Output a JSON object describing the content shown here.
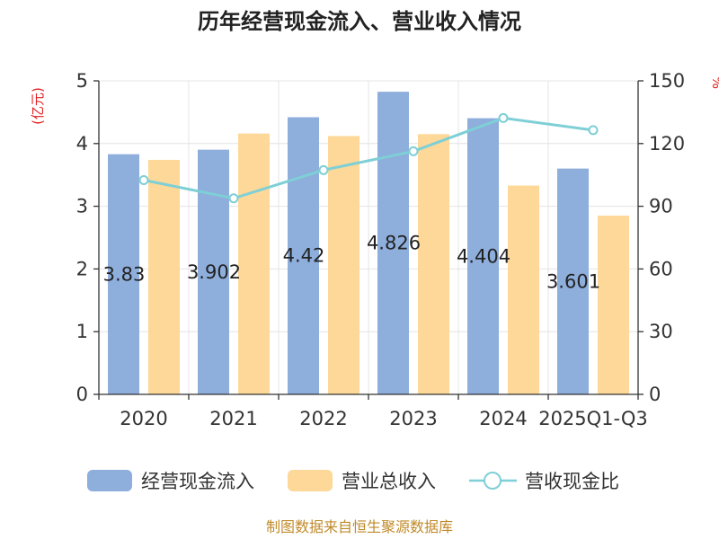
{
  "chart_data": {
    "type": "bar",
    "title": "历年经营现金流入、营业收入情况",
    "categories": [
      "2020",
      "2021",
      "2022",
      "2023",
      "2024",
      "2025Q1-Q3"
    ],
    "series": [
      {
        "name": "经营现金流入",
        "kind": "bar",
        "axis": "left",
        "color": "#8eaedc",
        "values": [
          3.83,
          3.902,
          4.42,
          4.826,
          4.404,
          3.601
        ],
        "data_labels": [
          "3.83",
          "3.902",
          "4.42",
          "4.826",
          "4.404",
          "3.601"
        ]
      },
      {
        "name": "营业总收入",
        "kind": "bar",
        "axis": "left",
        "color": "#fdd898",
        "values": [
          3.74,
          4.16,
          4.12,
          4.15,
          3.33,
          2.85
        ]
      },
      {
        "name": "营收现金比",
        "kind": "line",
        "axis": "right",
        "color": "#7ecfd6",
        "values": [
          102.5,
          93.8,
          107.3,
          116.3,
          132.2,
          126.4
        ]
      }
    ],
    "y_left": {
      "label": "(亿元)",
      "min": 0,
      "max": 5,
      "ticks": [
        0,
        1,
        2,
        3,
        4,
        5
      ]
    },
    "y_right": {
      "label": "%",
      "min": 0,
      "max": 150,
      "ticks": [
        0,
        30,
        60,
        90,
        120,
        150
      ]
    },
    "grid": true,
    "legend": "bottom"
  },
  "source": "制图数据来自恒生聚源数据库"
}
